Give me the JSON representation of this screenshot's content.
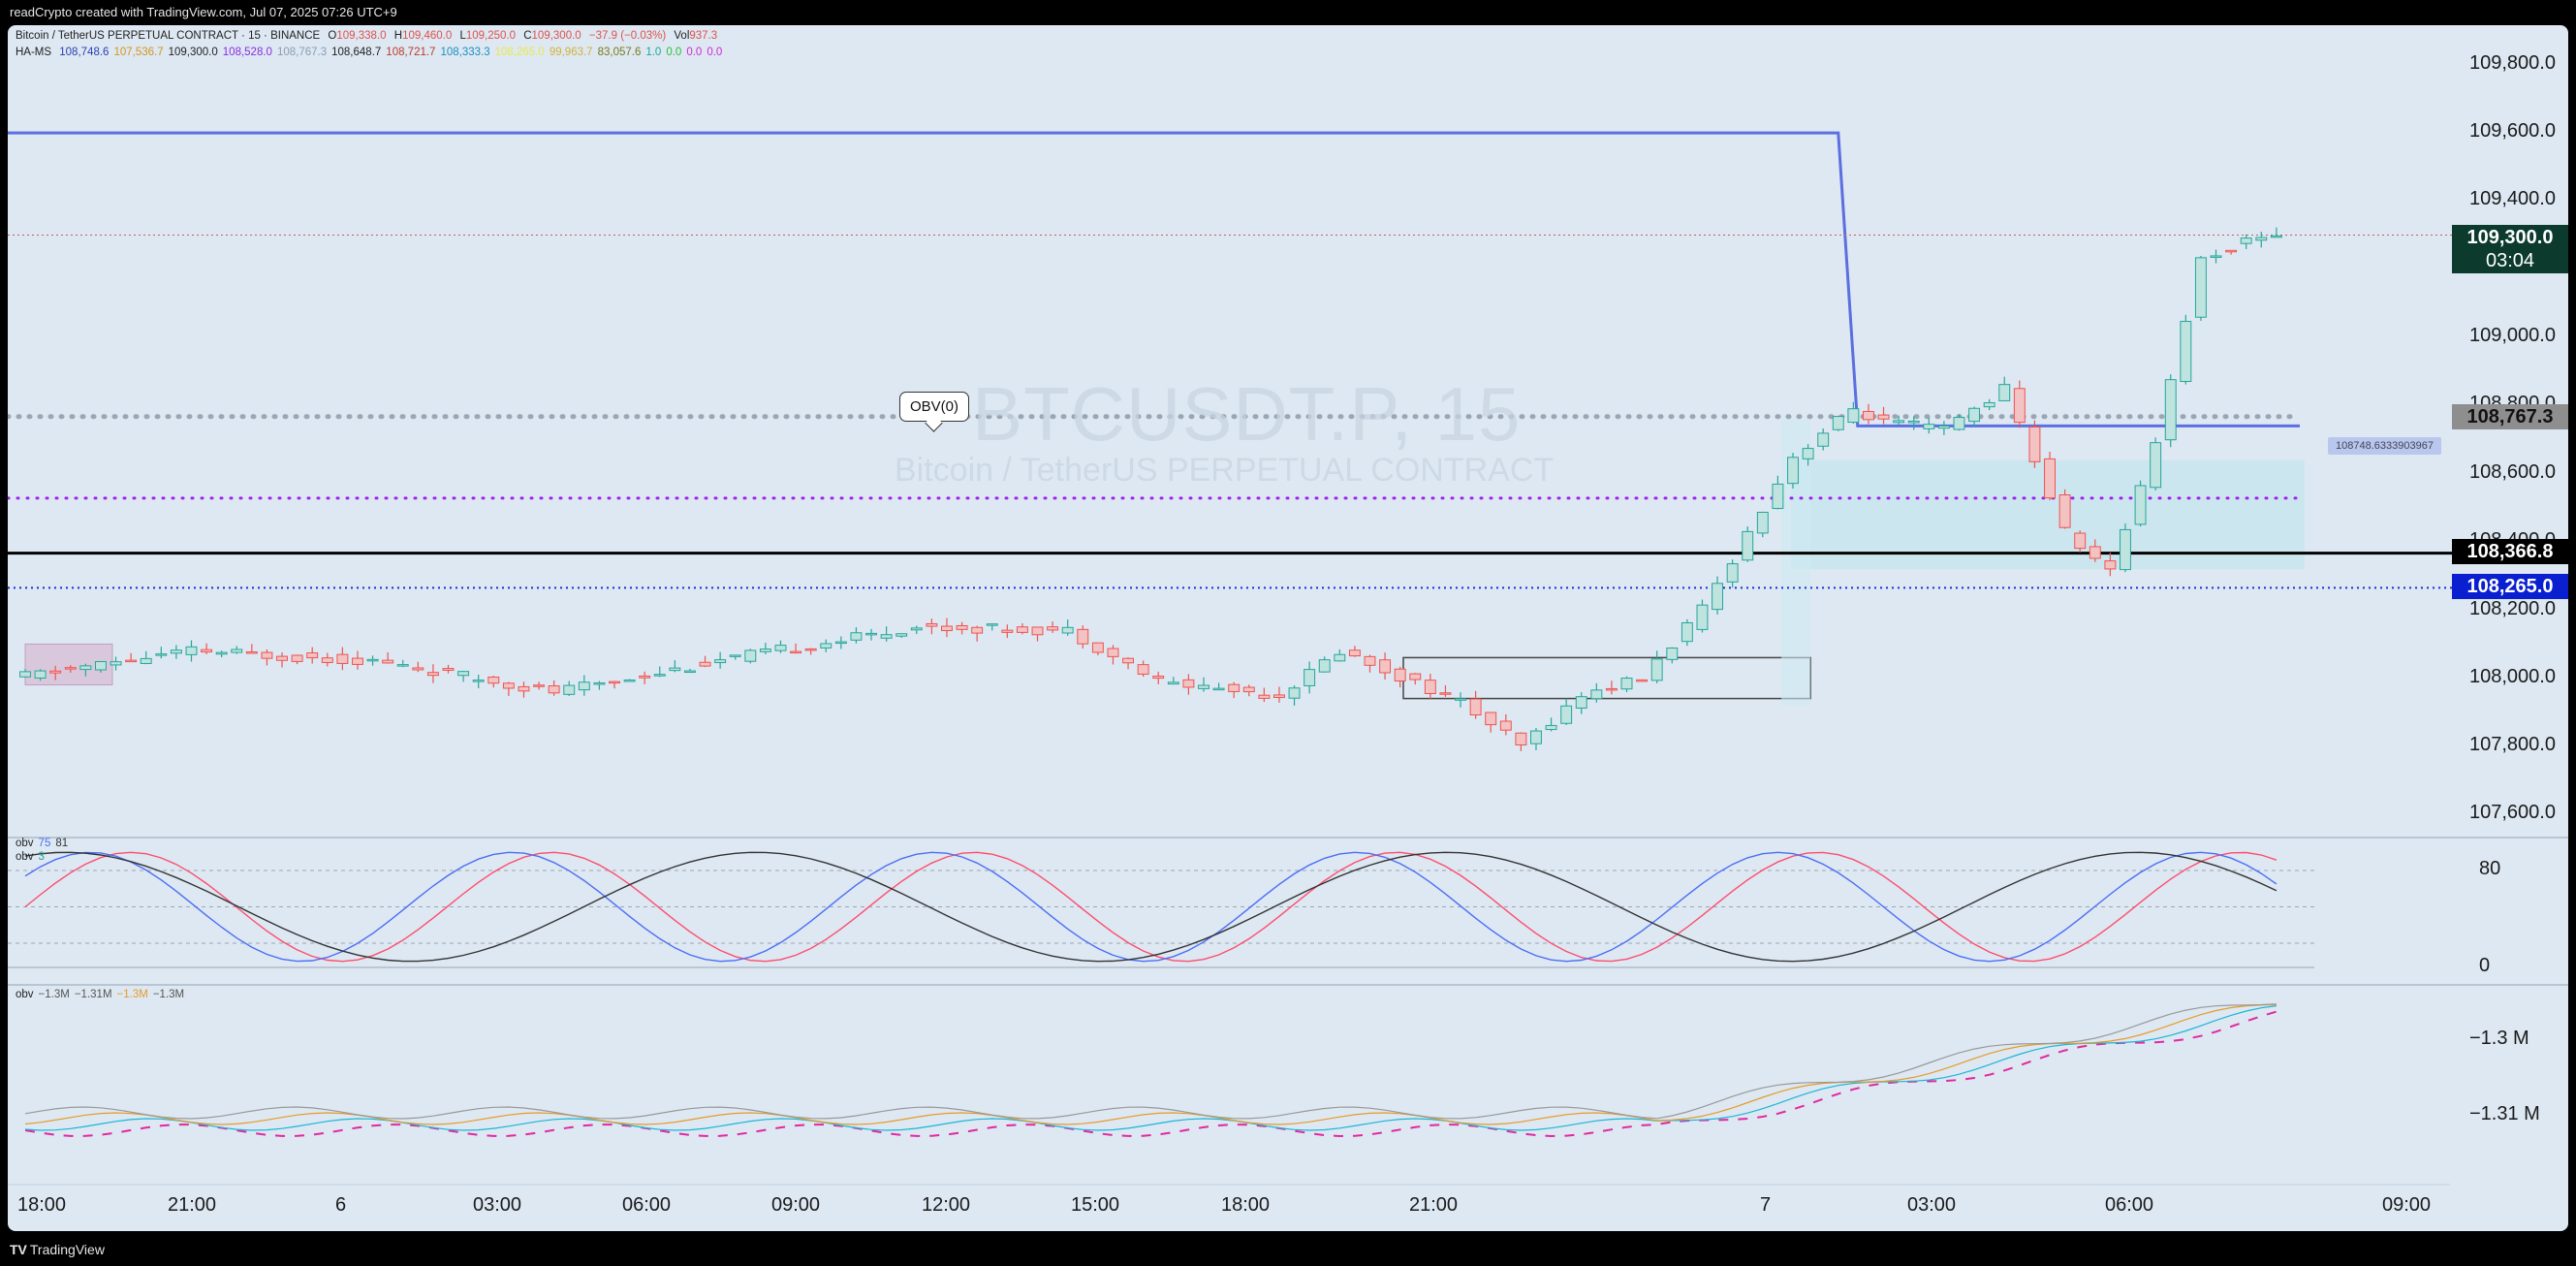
{
  "header_credit": "readCrypto created with TradingView.com, Jul 07, 2025 07:26 UTC+9",
  "symbol_line": {
    "title": "Bitcoin / TetherUS PERPETUAL CONTRACT · 15 · BINANCE",
    "o_label": "O",
    "o": "109,338.0",
    "h_label": "H",
    "h": "109,460.0",
    "l_label": "L",
    "l": "109,250.0",
    "c_label": "C",
    "c": "109,300.0",
    "chg": "−37.9 (−0.03%)",
    "vol_label": "Vol",
    "vol": "937.3"
  },
  "indicator_line": {
    "name": "HA-MS",
    "values": [
      "108,748.6",
      "107,536.7",
      "109,300.0",
      "108,528.0",
      "108,767.3",
      "108,648.7",
      "108,721.7",
      "108,333.3",
      "108,265.0",
      "99,963.7",
      "83,057.6",
      "1.0",
      "0.0",
      "0.0",
      "0.0"
    ],
    "colors": [
      "#2a3fb0",
      "#d4961c",
      "#222222",
      "#8a2be2",
      "#8b9bb4",
      "#222222",
      "#c0392b",
      "#1a8fc0",
      "#e8e84a",
      "#d4b23a",
      "#7a7a1a",
      "#1aa89c",
      "#2bbf3a",
      "#d428d4",
      "#d428d4"
    ]
  },
  "watermark": {
    "symbol": "BTCUSDT.P, 15",
    "name": "Bitcoin / TetherUS PERPETUAL CONTRACT"
  },
  "callout": "OBV(0)",
  "value_tag": "108748.6333903967",
  "price_axis": {
    "ticks": [
      "109,800.0",
      "109,600.0",
      "109,400.0",
      "109,000.0",
      "108,800.0",
      "108,600.0",
      "108,400.0",
      "108,200.0",
      "108,000.0",
      "107,800.0",
      "107,600.0"
    ],
    "badges": {
      "last_price": "109,300.0",
      "countdown": "03:04",
      "grey_level": "108,767.3",
      "black_level": "108,366.8",
      "blue_level": "108,265.0"
    }
  },
  "time_axis": [
    "18:00",
    "21:00",
    "6",
    "03:00",
    "06:00",
    "09:00",
    "12:00",
    "15:00",
    "18:00",
    "21:00",
    "7",
    "03:00",
    "06:00",
    "09:00"
  ],
  "pane2": {
    "legend_name": "obv",
    "legend_v1": "75",
    "legend_v2": "81",
    "legend_name2": "obv",
    "legend_v3": "3",
    "ticks": [
      "80",
      "0"
    ]
  },
  "pane3": {
    "legend_name": "obv",
    "legend_values": [
      "−1.3M",
      "−1.31M",
      "−1.3M",
      "−1.3M"
    ],
    "ticks": [
      "−1.3 M",
      "−1.31 M"
    ]
  },
  "footer_brand": "TradingView",
  "colors": {
    "up": "#26a69a",
    "down": "#ef5350",
    "background": "#dde8f2",
    "blue_line": "#5b6fe0"
  },
  "chart_data": [
    {
      "type": "candlestick",
      "title": "BTCUSDT.P, 15",
      "ylim": [
        107500,
        109900
      ],
      "x_range": [
        "2025-07-05 18:00",
        "2025-07-07 09:00"
      ],
      "interval_minutes": 15,
      "keypoints": [
        {
          "t": "2025-07-05 18:00",
          "price": 108000
        },
        {
          "t": "2025-07-05 21:00",
          "price": 108080
        },
        {
          "t": "2025-07-06 00:00",
          "price": 108050
        },
        {
          "t": "2025-07-06 03:00",
          "price": 107960
        },
        {
          "t": "2025-07-06 06:00",
          "price": 108060
        },
        {
          "t": "2025-07-06 09:00",
          "price": 108150
        },
        {
          "t": "2025-07-06 11:30",
          "price": 108140
        },
        {
          "t": "2025-07-06 13:00",
          "price": 107990
        },
        {
          "t": "2025-07-06 15:00",
          "price": 107950
        },
        {
          "t": "2025-07-06 16:00",
          "price": 108080
        },
        {
          "t": "2025-07-06 18:00",
          "price": 107930
        },
        {
          "t": "2025-07-06 19:00",
          "price": 107800
        },
        {
          "t": "2025-07-06 20:00",
          "price": 107950
        },
        {
          "t": "2025-07-06 21:00",
          "price": 108000
        },
        {
          "t": "2025-07-06 22:00",
          "price": 108200
        },
        {
          "t": "2025-07-06 23:30",
          "price": 108650
        },
        {
          "t": "2025-07-07 00:30",
          "price": 108790
        },
        {
          "t": "2025-07-07 01:00",
          "price": 108750
        },
        {
          "t": "2025-07-07 02:00",
          "price": 108730
        },
        {
          "t": "2025-07-07 03:00",
          "price": 108850
        },
        {
          "t": "2025-07-07 04:00",
          "price": 108430
        },
        {
          "t": "2025-07-07 04:45",
          "price": 108310
        },
        {
          "t": "2025-07-07 05:30",
          "price": 108700
        },
        {
          "t": "2025-07-07 06:15",
          "price": 109230
        },
        {
          "t": "2025-07-07 07:15",
          "price": 109300
        }
      ],
      "levels": [
        {
          "name": "blue_line",
          "value": 109600,
          "until": "2025-07-07 00:00",
          "then": 108740
        },
        {
          "name": "grey_dotted",
          "value": 108767.3
        },
        {
          "name": "purple_dotted",
          "value": 108528.0
        },
        {
          "name": "black_level",
          "value": 108366.8
        },
        {
          "name": "blue_dotted",
          "value": 108265.0
        },
        {
          "name": "last_price",
          "value": 109300.0
        }
      ]
    },
    {
      "type": "line",
      "title": "obv",
      "ylim": [
        0,
        100
      ],
      "series": [
        {
          "name": "75",
          "color": "#ff4d6d"
        },
        {
          "name": "81",
          "color": "#4c6ef5"
        },
        {
          "name": "3",
          "color": "#333333"
        }
      ],
      "hlines": [
        80,
        50,
        20,
        0
      ]
    },
    {
      "type": "line",
      "title": "obv",
      "series": [
        {
          "name": "−1.3M",
          "color": "#e2299e"
        },
        {
          "name": "−1.31M",
          "color": "#1ab5d8"
        },
        {
          "name": "−1.3M",
          "color": "#e69b2a"
        },
        {
          "name": "−1.3M",
          "color": "#999999"
        }
      ]
    }
  ]
}
